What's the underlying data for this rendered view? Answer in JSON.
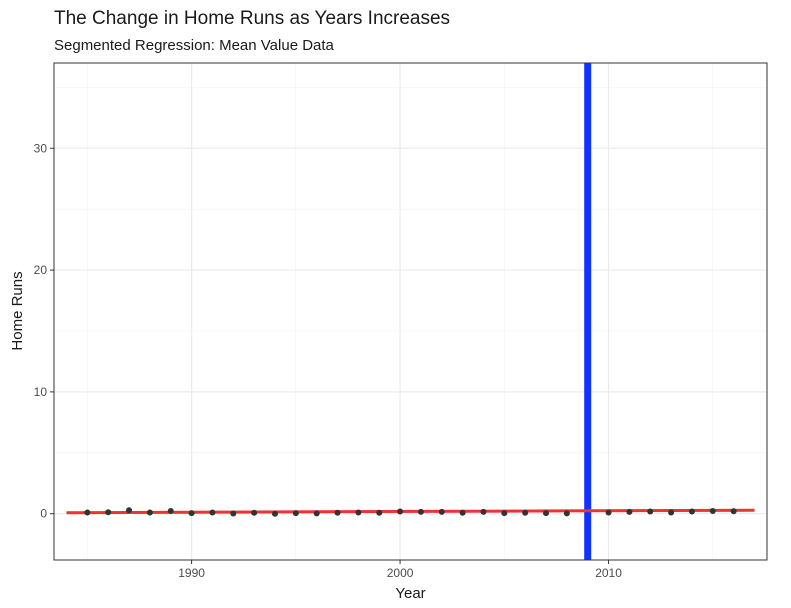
{
  "chart_data": {
    "type": "scatter",
    "title": "The Change in Home Runs as Years Increases",
    "subtitle": "Segmented Regression: Mean Value Data",
    "xlabel": "Year",
    "ylabel": "Home Runs",
    "xlim": [
      1983.4,
      2017.6
    ],
    "ylim": [
      -3.8,
      37
    ],
    "x_ticks": [
      1990,
      2000,
      2010
    ],
    "y_ticks": [
      0,
      10,
      20,
      30
    ],
    "x_minor": [
      1985,
      1995,
      2005,
      2015
    ],
    "y_minor": [
      5,
      15,
      25,
      35
    ],
    "grid": true,
    "theme": "bw",
    "points": {
      "x": [
        1985,
        1986,
        1987,
        1988,
        1989,
        1990,
        1991,
        1992,
        1993,
        1994,
        1995,
        1996,
        1997,
        1998,
        1999,
        2000,
        2001,
        2002,
        2003,
        2004,
        2005,
        2006,
        2007,
        2008,
        2010,
        2011,
        2012,
        2013,
        2014,
        2015,
        2016
      ],
      "y": [
        0.1,
        0.12,
        0.28,
        0.1,
        0.22,
        0.05,
        0.1,
        0.02,
        0.08,
        0.0,
        0.05,
        0.03,
        0.08,
        0.1,
        0.08,
        0.18,
        0.15,
        0.15,
        0.08,
        0.15,
        0.05,
        0.08,
        0.05,
        0.03,
        0.1,
        0.15,
        0.18,
        0.1,
        0.18,
        0.22,
        0.2
      ],
      "color": "#333333"
    },
    "regression_segments": [
      {
        "x": [
          1984,
          2009
        ],
        "y": [
          0.08,
          0.24
        ],
        "color": "#ee3333"
      },
      {
        "x": [
          2009,
          2017
        ],
        "y": [
          0.24,
          0.28
        ],
        "color": "#ee3333"
      }
    ],
    "vline": {
      "x": 2009,
      "color": "#1133ff"
    }
  }
}
